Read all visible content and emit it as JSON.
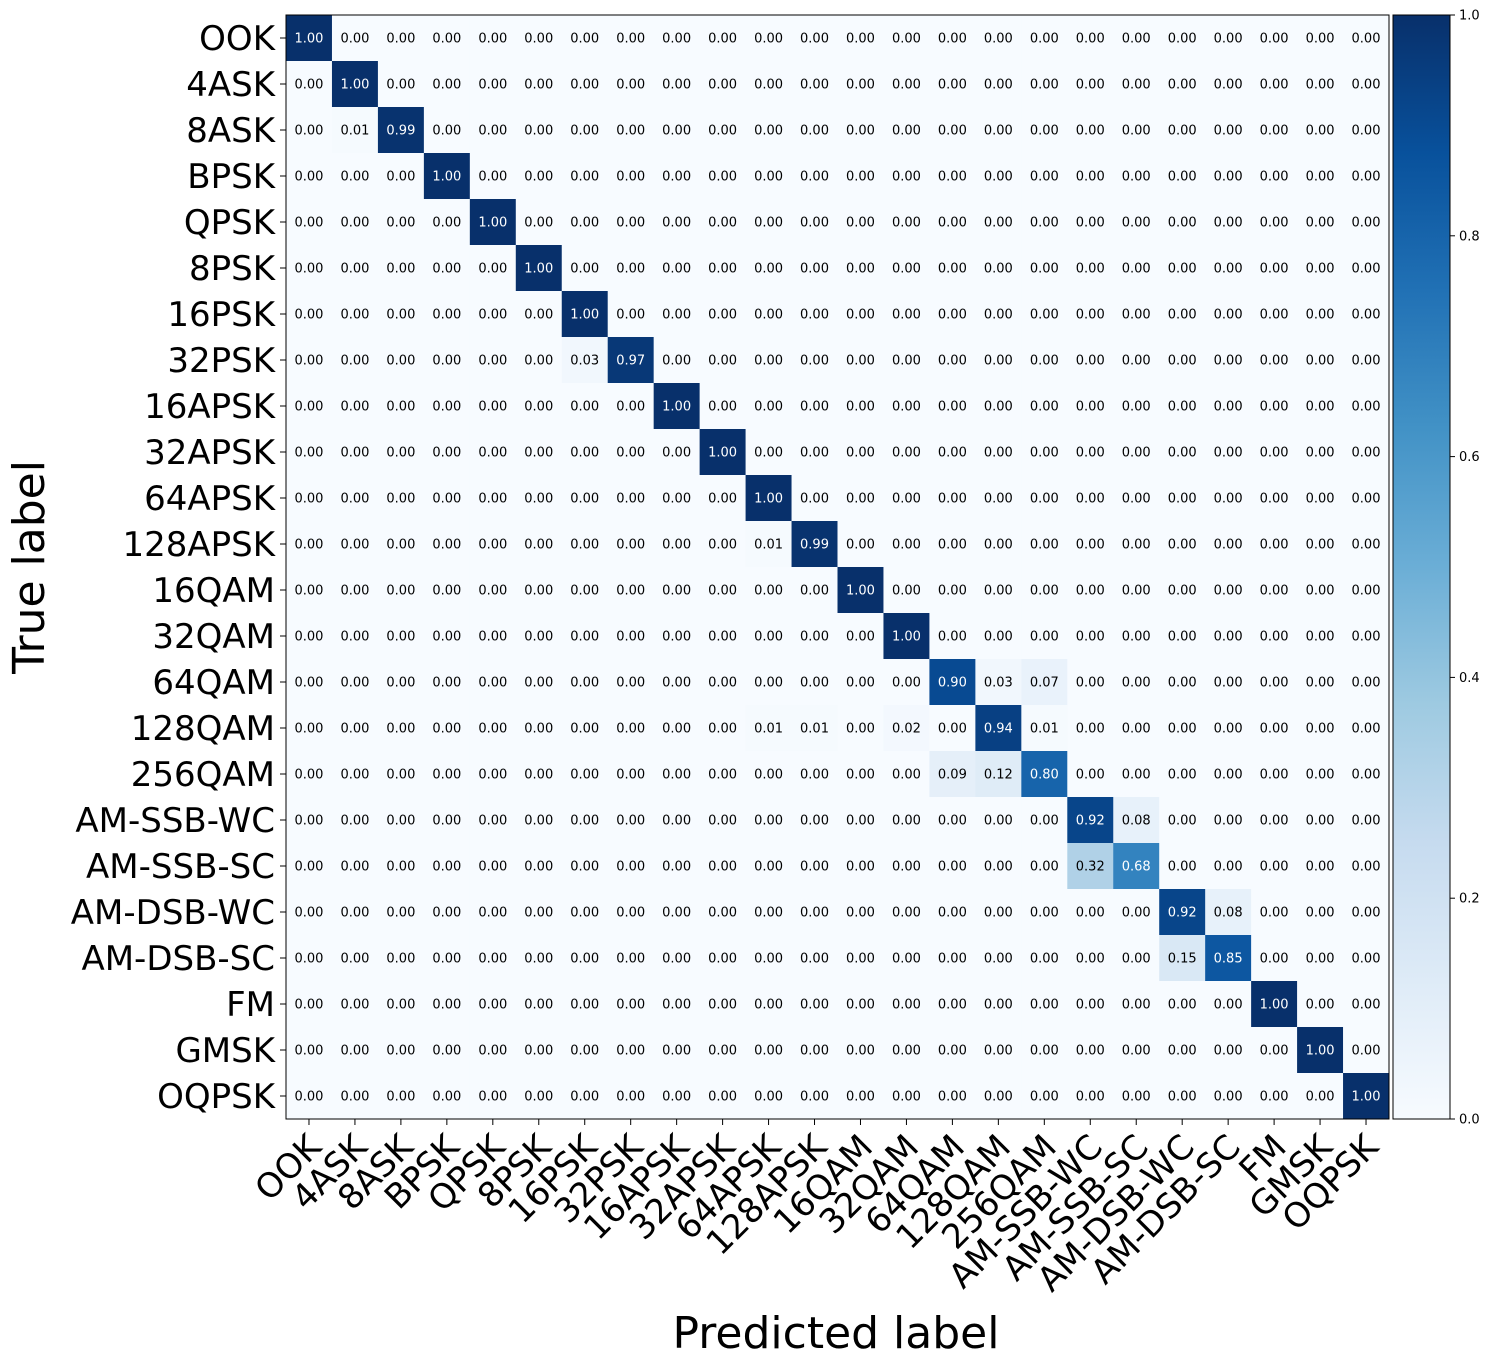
{
  "chart_data": {
    "type": "heatmap",
    "xlabel": "Predicted label",
    "ylabel": "True label",
    "labels": [
      "OOK",
      "4ASK",
      "8ASK",
      "BPSK",
      "QPSK",
      "8PSK",
      "16PSK",
      "32PSK",
      "16APSK",
      "32APSK",
      "64APSK",
      "128APSK",
      "16QAM",
      "32QAM",
      "64QAM",
      "128QAM",
      "256QAM",
      "AM-SSB-WC",
      "AM-SSB-SC",
      "AM-DSB-WC",
      "AM-DSB-SC",
      "FM",
      "GMSK",
      "OQPSK"
    ],
    "matrix": [
      [
        1.0,
        0,
        0,
        0,
        0,
        0,
        0,
        0,
        0,
        0,
        0,
        0,
        0,
        0,
        0,
        0,
        0,
        0,
        0,
        0,
        0,
        0,
        0,
        0
      ],
      [
        0,
        1.0,
        0,
        0,
        0,
        0,
        0,
        0,
        0,
        0,
        0,
        0,
        0,
        0,
        0,
        0,
        0,
        0,
        0,
        0,
        0,
        0,
        0,
        0
      ],
      [
        0,
        0.01,
        0.99,
        0,
        0,
        0,
        0,
        0,
        0,
        0,
        0,
        0,
        0,
        0,
        0,
        0,
        0,
        0,
        0,
        0,
        0,
        0,
        0,
        0
      ],
      [
        0,
        0,
        0,
        1.0,
        0,
        0,
        0,
        0,
        0,
        0,
        0,
        0,
        0,
        0,
        0,
        0,
        0,
        0,
        0,
        0,
        0,
        0,
        0,
        0
      ],
      [
        0,
        0,
        0,
        0,
        1.0,
        0,
        0,
        0,
        0,
        0,
        0,
        0,
        0,
        0,
        0,
        0,
        0,
        0,
        0,
        0,
        0,
        0,
        0,
        0
      ],
      [
        0,
        0,
        0,
        0,
        0,
        1.0,
        0,
        0,
        0,
        0,
        0,
        0,
        0,
        0,
        0,
        0,
        0,
        0,
        0,
        0,
        0,
        0,
        0,
        0
      ],
      [
        0,
        0,
        0,
        0,
        0,
        0,
        1.0,
        0,
        0,
        0,
        0,
        0,
        0,
        0,
        0,
        0,
        0,
        0,
        0,
        0,
        0,
        0,
        0,
        0
      ],
      [
        0,
        0,
        0,
        0,
        0,
        0,
        0.03,
        0.97,
        0,
        0,
        0,
        0,
        0,
        0,
        0,
        0,
        0,
        0,
        0,
        0,
        0,
        0,
        0,
        0
      ],
      [
        0,
        0,
        0,
        0,
        0,
        0,
        0,
        0,
        1.0,
        0,
        0,
        0,
        0,
        0,
        0,
        0,
        0,
        0,
        0,
        0,
        0,
        0,
        0,
        0
      ],
      [
        0,
        0,
        0,
        0,
        0,
        0,
        0,
        0,
        0,
        1.0,
        0,
        0,
        0,
        0,
        0,
        0,
        0,
        0,
        0,
        0,
        0,
        0,
        0,
        0
      ],
      [
        0,
        0,
        0,
        0,
        0,
        0,
        0,
        0,
        0,
        0,
        1.0,
        0,
        0,
        0,
        0,
        0,
        0,
        0,
        0,
        0,
        0,
        0,
        0,
        0
      ],
      [
        0,
        0,
        0,
        0,
        0,
        0,
        0,
        0,
        0,
        0,
        0.01,
        0.99,
        0,
        0,
        0,
        0,
        0,
        0,
        0,
        0,
        0,
        0,
        0,
        0
      ],
      [
        0,
        0,
        0,
        0,
        0,
        0,
        0,
        0,
        0,
        0,
        0,
        0,
        1.0,
        0,
        0,
        0,
        0,
        0,
        0,
        0,
        0,
        0,
        0,
        0
      ],
      [
        0,
        0,
        0,
        0,
        0,
        0,
        0,
        0,
        0,
        0,
        0,
        0,
        0,
        1.0,
        0,
        0,
        0,
        0,
        0,
        0,
        0,
        0,
        0,
        0
      ],
      [
        0,
        0,
        0,
        0,
        0,
        0,
        0,
        0,
        0,
        0,
        0,
        0,
        0,
        0,
        0.9,
        0.03,
        0.07,
        0,
        0,
        0,
        0,
        0,
        0,
        0
      ],
      [
        0,
        0,
        0,
        0,
        0,
        0,
        0,
        0,
        0,
        0,
        0.01,
        0.01,
        0,
        0.02,
        0,
        0.94,
        0.01,
        0,
        0,
        0,
        0,
        0,
        0,
        0
      ],
      [
        0,
        0,
        0,
        0,
        0,
        0,
        0,
        0,
        0,
        0,
        0,
        0,
        0,
        0,
        0.09,
        0.12,
        0.8,
        0,
        0,
        0,
        0,
        0,
        0,
        0
      ],
      [
        0,
        0,
        0,
        0,
        0,
        0,
        0,
        0,
        0,
        0,
        0,
        0,
        0,
        0,
        0,
        0,
        0,
        0.92,
        0.08,
        0,
        0,
        0,
        0,
        0
      ],
      [
        0,
        0,
        0,
        0,
        0,
        0,
        0,
        0,
        0,
        0,
        0,
        0,
        0,
        0,
        0,
        0,
        0,
        0.32,
        0.68,
        0,
        0,
        0,
        0,
        0
      ],
      [
        0,
        0,
        0,
        0,
        0,
        0,
        0,
        0,
        0,
        0,
        0,
        0,
        0,
        0,
        0,
        0,
        0,
        0,
        0,
        0.92,
        0.08,
        0,
        0,
        0
      ],
      [
        0,
        0,
        0,
        0,
        0,
        0,
        0,
        0,
        0,
        0,
        0,
        0,
        0,
        0,
        0,
        0,
        0,
        0,
        0,
        0.15,
        0.85,
        0,
        0,
        0
      ],
      [
        0,
        0,
        0,
        0,
        0,
        0,
        0,
        0,
        0,
        0,
        0,
        0,
        0,
        0,
        0,
        0,
        0,
        0,
        0,
        0,
        0,
        1.0,
        0,
        0
      ],
      [
        0,
        0,
        0,
        0,
        0,
        0,
        0,
        0,
        0,
        0,
        0,
        0,
        0,
        0,
        0,
        0,
        0,
        0,
        0,
        0,
        0,
        0,
        1.0,
        0
      ],
      [
        0,
        0,
        0,
        0,
        0,
        0,
        0,
        0,
        0,
        0,
        0,
        0,
        0,
        0,
        0,
        0,
        0,
        0,
        0,
        0,
        0,
        0,
        0,
        1.0
      ]
    ],
    "value_format": "2 decimals",
    "colormap": "Blues",
    "colorbar": {
      "range": [
        0.0,
        1.0
      ],
      "ticks": [
        "0.0",
        "0.2",
        "0.4",
        "0.6",
        "0.8",
        "1.0"
      ],
      "position": "right"
    },
    "grid": false
  }
}
